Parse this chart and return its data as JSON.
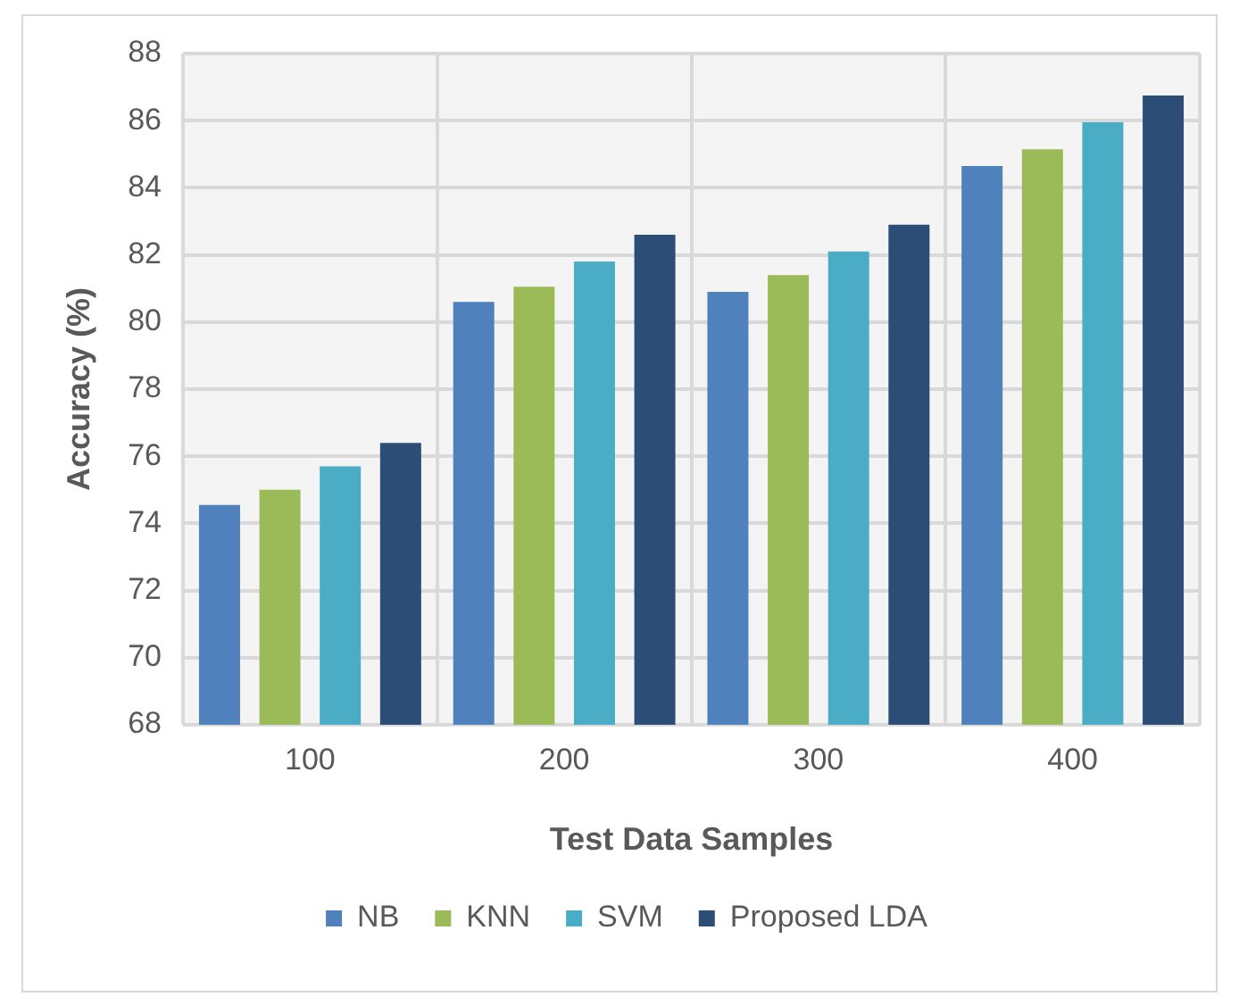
{
  "chart_data": {
    "type": "bar",
    "xlabel": "Test Data Samples",
    "ylabel": "Accuracy (%)",
    "categories": [
      "100",
      "200",
      "300",
      "400"
    ],
    "series": [
      {
        "name": "NB",
        "color": "#4f81bd",
        "values": [
          74.55,
          80.6,
          80.9,
          84.65
        ]
      },
      {
        "name": "KNN",
        "color": "#9bbb59",
        "values": [
          75.0,
          81.05,
          81.4,
          85.15
        ]
      },
      {
        "name": "SVM",
        "color": "#4bacc6",
        "values": [
          75.7,
          81.8,
          82.1,
          85.95
        ]
      },
      {
        "name": "Proposed LDA",
        "color": "#2c4d75",
        "values": [
          76.4,
          82.6,
          82.9,
          86.75
        ]
      }
    ],
    "ylim": [
      68,
      88
    ],
    "yticks": [
      68,
      70,
      72,
      74,
      76,
      78,
      80,
      82,
      84,
      86,
      88
    ],
    "grid": true,
    "legend": "bottom"
  }
}
